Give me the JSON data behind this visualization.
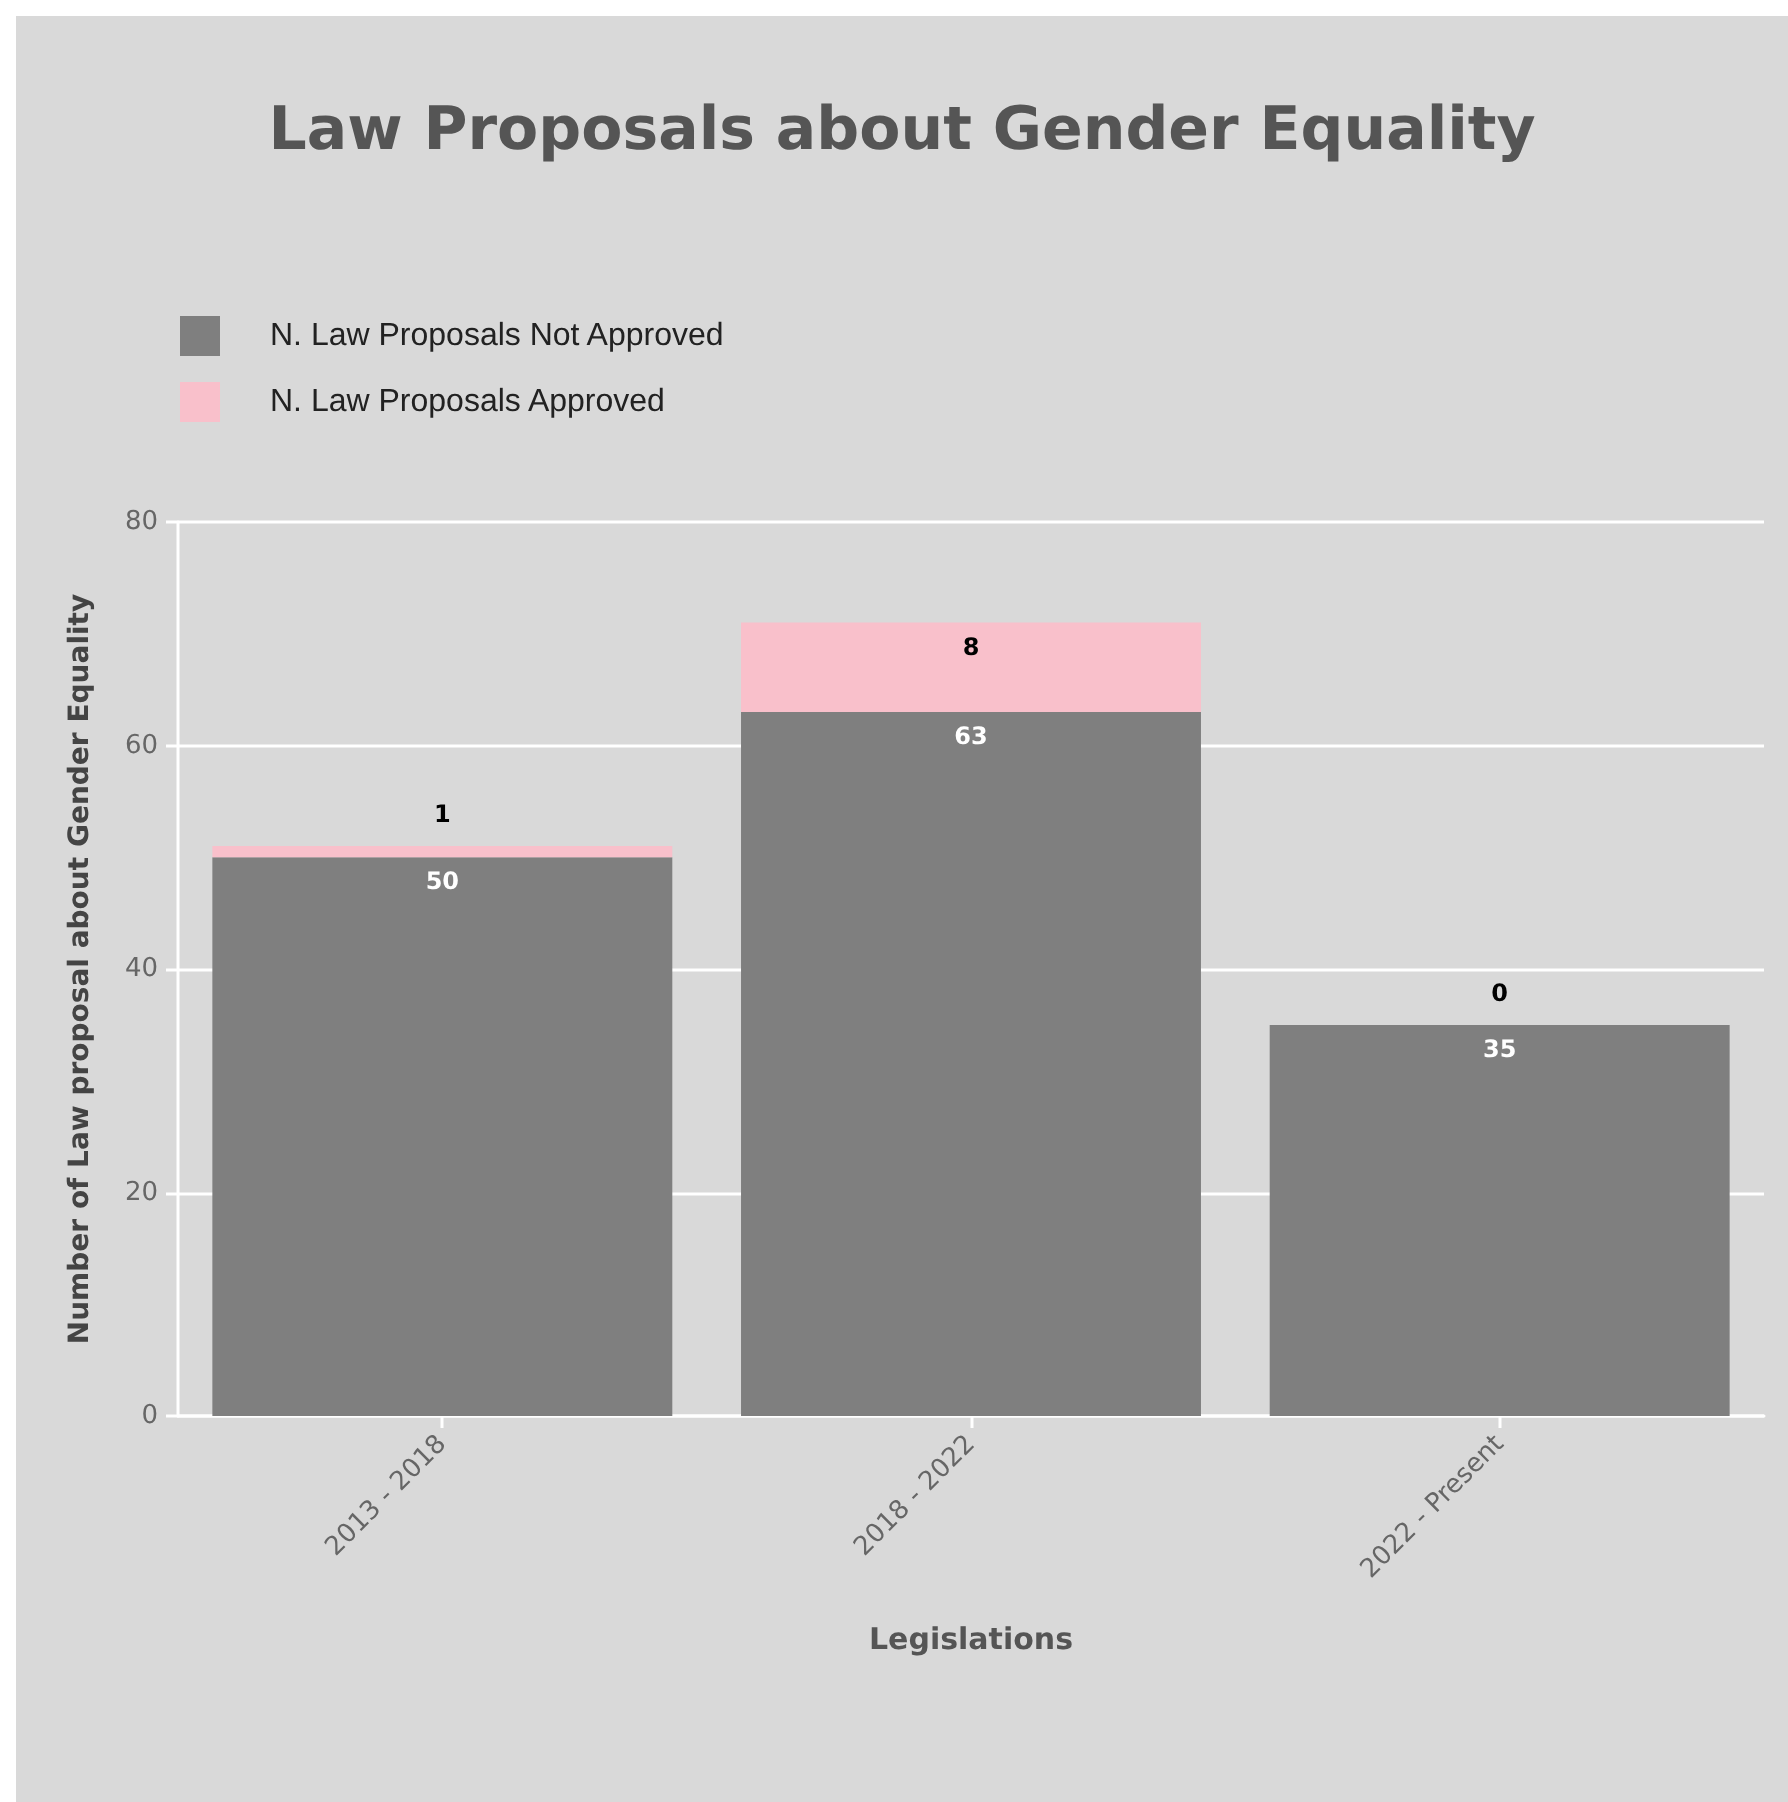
{
  "chart_data": {
    "type": "bar",
    "title": "Law Proposals about Gender Equality",
    "xlabel": "Legislations",
    "ylabel": "Number of Law proposal about Gender Equality",
    "categories": [
      "2013 - 2018",
      "2018 - 2022",
      "2022 - Present"
    ],
    "series": [
      {
        "name": "N. Law Proposals Not Approved",
        "color": "#7f7f7f",
        "values": [
          50,
          63,
          35
        ]
      },
      {
        "name": "N. Law Proposals Approved",
        "color": "#f9c0cb",
        "values": [
          1,
          8,
          0
        ]
      }
    ],
    "stacked": true,
    "ylim": [
      0,
      80
    ],
    "yticks": [
      0,
      20,
      40,
      60,
      80
    ],
    "grid": "y",
    "legend": "top left",
    "data_labels": true
  }
}
